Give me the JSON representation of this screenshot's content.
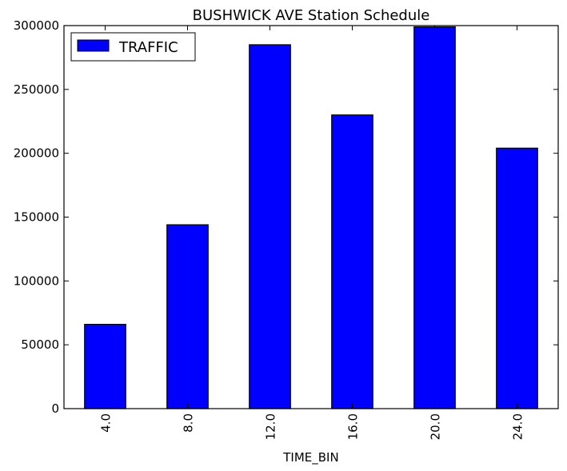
{
  "chart_data": {
    "type": "bar",
    "title": "BUSHWICK AVE Station Schedule",
    "xlabel": "TIME_BIN",
    "ylabel": "",
    "categories": [
      "4.0",
      "8.0",
      "12.0",
      "16.0",
      "20.0",
      "24.0"
    ],
    "series": [
      {
        "name": "TRAFFIC",
        "values": [
          66000,
          144000,
          285000,
          230000,
          299000,
          204000
        ]
      }
    ],
    "ylim": [
      0,
      300000
    ],
    "yticks": [
      0,
      50000,
      100000,
      150000,
      200000,
      250000,
      300000
    ],
    "ytick_labels": [
      "0",
      "50000",
      "100000",
      "150000",
      "200000",
      "250000",
      "300000"
    ],
    "grid": false,
    "legend_position": "top-left",
    "bar_color": "#0000ff",
    "edge_color": "#000000"
  }
}
